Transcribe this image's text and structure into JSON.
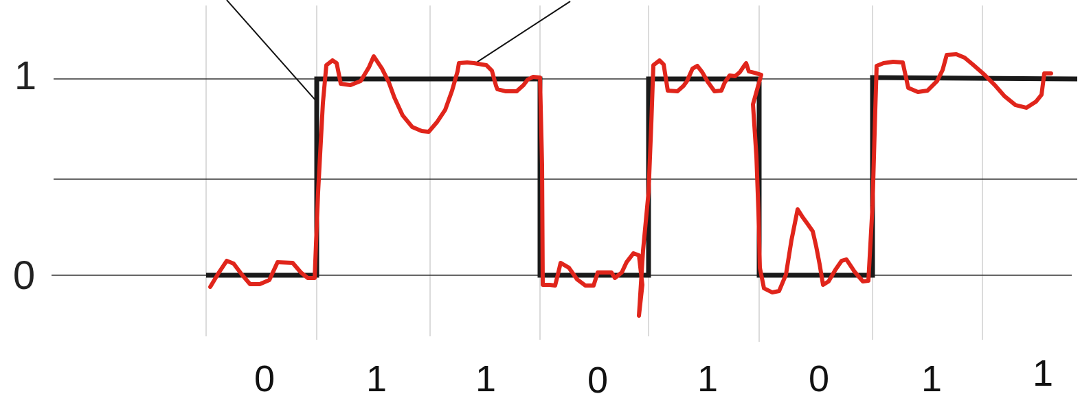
{
  "diagram": {
    "y_levels": [
      "1",
      "0"
    ],
    "bits": [
      "0",
      "1",
      "1",
      "0",
      "1",
      "0",
      "1",
      "1"
    ],
    "colors": {
      "ideal_signal": "#1a1a1a",
      "noisy_signal": "#e0251b",
      "threshold_lines": "#333333",
      "bit_grid": "#cfcfcf",
      "leader_lines": "#111111"
    }
  }
}
